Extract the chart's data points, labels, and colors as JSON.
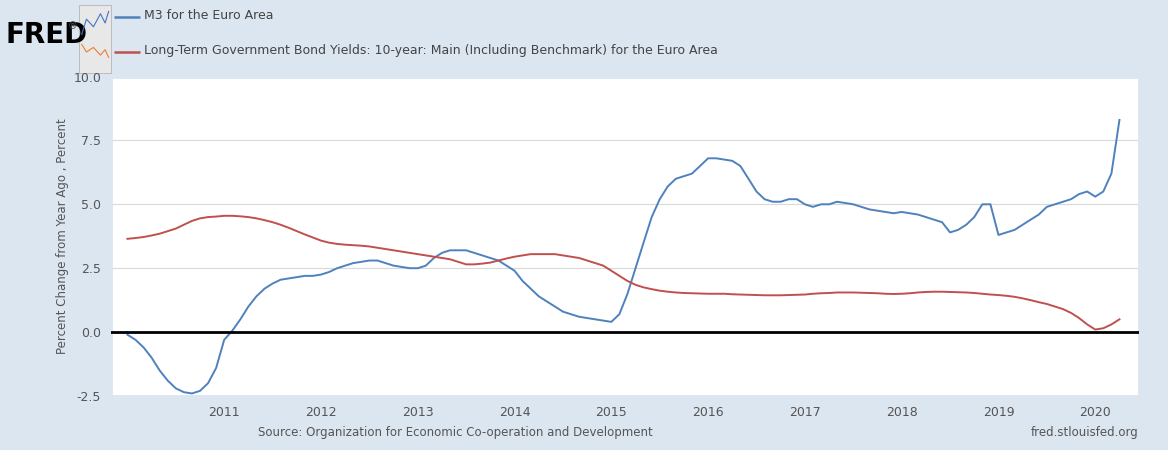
{
  "ylabel": "Percent Change from Year Ago , Percent",
  "source_left": "Source: Organization for Economic Co-operation and Development",
  "source_right": "fred.stlouisfed.org",
  "legend_blue": "M3 for the Euro Area",
  "legend_red": "Long-Term Government Bond Yields: 10-year: Main (Including Benchmark) for the Euro Area",
  "fig_bg_color": "#dce6f1",
  "plot_bg_color": "#ffffff",
  "blue_color": "#4f81bd",
  "red_color": "#c0504d",
  "grid_color": "#d9d9d9",
  "ylim": [
    -2.5,
    10.0
  ],
  "yticks": [
    -2.5,
    0.0,
    2.5,
    5.0,
    7.5,
    10.0
  ],
  "xlim": [
    2009.83,
    2020.45
  ],
  "xticks": [
    2011,
    2012,
    2013,
    2014,
    2015,
    2016,
    2017,
    2018,
    2019,
    2020
  ],
  "blue_data": {
    "x": [
      2010.0,
      2010.083,
      2010.167,
      2010.25,
      2010.333,
      2010.417,
      2010.5,
      2010.583,
      2010.667,
      2010.75,
      2010.833,
      2010.917,
      2011.0,
      2011.083,
      2011.167,
      2011.25,
      2011.333,
      2011.417,
      2011.5,
      2011.583,
      2011.667,
      2011.75,
      2011.833,
      2011.917,
      2012.0,
      2012.083,
      2012.167,
      2012.25,
      2012.333,
      2012.417,
      2012.5,
      2012.583,
      2012.667,
      2012.75,
      2012.833,
      2012.917,
      2013.0,
      2013.083,
      2013.167,
      2013.25,
      2013.333,
      2013.417,
      2013.5,
      2013.583,
      2013.667,
      2013.75,
      2013.833,
      2013.917,
      2014.0,
      2014.083,
      2014.167,
      2014.25,
      2014.333,
      2014.417,
      2014.5,
      2014.583,
      2014.667,
      2014.75,
      2014.833,
      2014.917,
      2015.0,
      2015.083,
      2015.167,
      2015.25,
      2015.333,
      2015.417,
      2015.5,
      2015.583,
      2015.667,
      2015.75,
      2015.833,
      2015.917,
      2016.0,
      2016.083,
      2016.167,
      2016.25,
      2016.333,
      2016.417,
      2016.5,
      2016.583,
      2016.667,
      2016.75,
      2016.833,
      2016.917,
      2017.0,
      2017.083,
      2017.167,
      2017.25,
      2017.333,
      2017.417,
      2017.5,
      2017.583,
      2017.667,
      2017.75,
      2017.833,
      2017.917,
      2018.0,
      2018.083,
      2018.167,
      2018.25,
      2018.333,
      2018.417,
      2018.5,
      2018.583,
      2018.667,
      2018.75,
      2018.833,
      2018.917,
      2019.0,
      2019.083,
      2019.167,
      2019.25,
      2019.333,
      2019.417,
      2019.5,
      2019.583,
      2019.667,
      2019.75,
      2019.833,
      2019.917,
      2020.0,
      2020.083,
      2020.167,
      2020.25
    ],
    "y": [
      -0.1,
      -0.3,
      -0.6,
      -1.0,
      -1.5,
      -1.9,
      -2.2,
      -2.35,
      -2.4,
      -2.3,
      -2.0,
      -1.4,
      -0.3,
      0.05,
      0.5,
      1.0,
      1.4,
      1.7,
      1.9,
      2.05,
      2.1,
      2.15,
      2.2,
      2.2,
      2.25,
      2.35,
      2.5,
      2.6,
      2.7,
      2.75,
      2.8,
      2.8,
      2.7,
      2.6,
      2.55,
      2.5,
      2.5,
      2.6,
      2.9,
      3.1,
      3.2,
      3.2,
      3.2,
      3.1,
      3.0,
      2.9,
      2.8,
      2.6,
      2.4,
      2.0,
      1.7,
      1.4,
      1.2,
      1.0,
      0.8,
      0.7,
      0.6,
      0.55,
      0.5,
      0.45,
      0.4,
      0.7,
      1.5,
      2.5,
      3.5,
      4.5,
      5.2,
      5.7,
      6.0,
      6.1,
      6.2,
      6.5,
      6.8,
      6.8,
      6.75,
      6.7,
      6.5,
      6.0,
      5.5,
      5.2,
      5.1,
      5.1,
      5.2,
      5.2,
      5.0,
      4.9,
      5.0,
      5.0,
      5.1,
      5.05,
      5.0,
      4.9,
      4.8,
      4.75,
      4.7,
      4.65,
      4.7,
      4.65,
      4.6,
      4.5,
      4.4,
      4.3,
      3.9,
      4.0,
      4.2,
      4.5,
      5.0,
      5.0,
      3.8,
      3.9,
      4.0,
      4.2,
      4.4,
      4.6,
      4.9,
      5.0,
      5.1,
      5.2,
      5.4,
      5.5,
      5.3,
      5.5,
      6.2,
      8.3
    ]
  },
  "red_data": {
    "x": [
      2010.0,
      2010.083,
      2010.167,
      2010.25,
      2010.333,
      2010.417,
      2010.5,
      2010.583,
      2010.667,
      2010.75,
      2010.833,
      2010.917,
      2011.0,
      2011.083,
      2011.167,
      2011.25,
      2011.333,
      2011.417,
      2011.5,
      2011.583,
      2011.667,
      2011.75,
      2011.833,
      2011.917,
      2012.0,
      2012.083,
      2012.167,
      2012.25,
      2012.333,
      2012.417,
      2012.5,
      2012.583,
      2012.667,
      2012.75,
      2012.833,
      2012.917,
      2013.0,
      2013.083,
      2013.167,
      2013.25,
      2013.333,
      2013.417,
      2013.5,
      2013.583,
      2013.667,
      2013.75,
      2013.833,
      2013.917,
      2014.0,
      2014.083,
      2014.167,
      2014.25,
      2014.333,
      2014.417,
      2014.5,
      2014.583,
      2014.667,
      2014.75,
      2014.833,
      2014.917,
      2015.0,
      2015.083,
      2015.167,
      2015.25,
      2015.333,
      2015.417,
      2015.5,
      2015.583,
      2015.667,
      2015.75,
      2015.833,
      2015.917,
      2016.0,
      2016.083,
      2016.167,
      2016.25,
      2016.333,
      2016.417,
      2016.5,
      2016.583,
      2016.667,
      2016.75,
      2016.833,
      2016.917,
      2017.0,
      2017.083,
      2017.167,
      2017.25,
      2017.333,
      2017.417,
      2017.5,
      2017.583,
      2017.667,
      2017.75,
      2017.833,
      2017.917,
      2018.0,
      2018.083,
      2018.167,
      2018.25,
      2018.333,
      2018.417,
      2018.5,
      2018.583,
      2018.667,
      2018.75,
      2018.833,
      2018.917,
      2019.0,
      2019.083,
      2019.167,
      2019.25,
      2019.333,
      2019.417,
      2019.5,
      2019.583,
      2019.667,
      2019.75,
      2019.833,
      2019.917,
      2020.0,
      2020.083,
      2020.167,
      2020.25
    ],
    "y": [
      3.65,
      3.68,
      3.72,
      3.78,
      3.85,
      3.95,
      4.05,
      4.2,
      4.35,
      4.45,
      4.5,
      4.52,
      4.55,
      4.55,
      4.53,
      4.5,
      4.45,
      4.38,
      4.3,
      4.2,
      4.08,
      3.95,
      3.82,
      3.7,
      3.58,
      3.5,
      3.45,
      3.42,
      3.4,
      3.38,
      3.35,
      3.3,
      3.25,
      3.2,
      3.15,
      3.1,
      3.05,
      3.0,
      2.95,
      2.9,
      2.85,
      2.75,
      2.65,
      2.65,
      2.68,
      2.72,
      2.8,
      2.88,
      2.95,
      3.0,
      3.05,
      3.05,
      3.05,
      3.05,
      3.0,
      2.95,
      2.9,
      2.8,
      2.7,
      2.6,
      2.4,
      2.2,
      2.0,
      1.85,
      1.75,
      1.68,
      1.62,
      1.58,
      1.55,
      1.53,
      1.52,
      1.51,
      1.5,
      1.5,
      1.5,
      1.48,
      1.47,
      1.46,
      1.45,
      1.44,
      1.44,
      1.44,
      1.45,
      1.46,
      1.47,
      1.5,
      1.52,
      1.53,
      1.55,
      1.55,
      1.55,
      1.54,
      1.53,
      1.52,
      1.5,
      1.49,
      1.5,
      1.52,
      1.55,
      1.57,
      1.58,
      1.58,
      1.57,
      1.56,
      1.55,
      1.53,
      1.5,
      1.47,
      1.45,
      1.42,
      1.38,
      1.32,
      1.25,
      1.17,
      1.1,
      1.0,
      0.9,
      0.75,
      0.55,
      0.3,
      0.1,
      0.15,
      0.3,
      0.5
    ]
  }
}
